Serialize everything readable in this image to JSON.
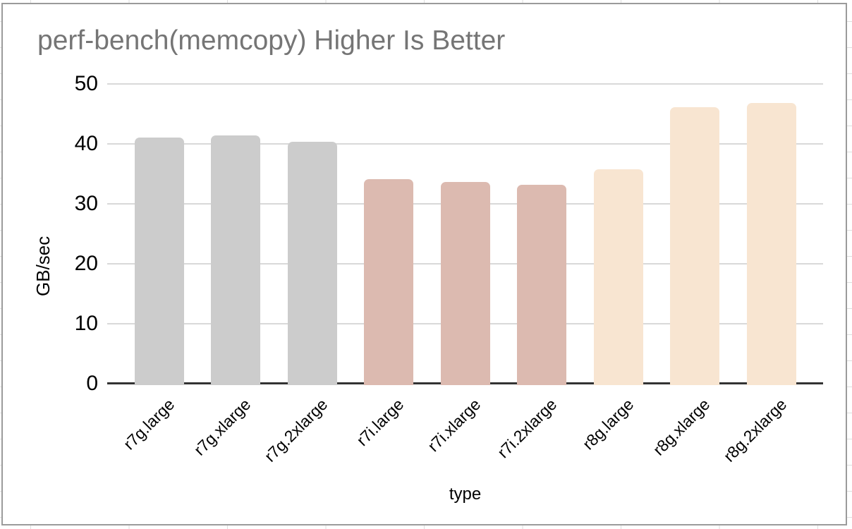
{
  "canvas": {
    "background_color": "#ffffff",
    "sheet_gridline_color": "#dedede",
    "card_border_color": "#9b9b9b"
  },
  "chart_data": {
    "type": "bar",
    "title": "perf-bench(memcopy) Higher Is Better",
    "xlabel": "type",
    "ylabel": "GB/sec",
    "categories": [
      "r7g.large",
      "r7g.xlarge",
      "r7g.2xlarge",
      "r7i.large",
      "r7i.xlarge",
      "r7i.2xlarge",
      "r8g.large",
      "r8g.xlarge",
      "r8g.2xlarge"
    ],
    "values": [
      41.1,
      41.4,
      40.3,
      34.1,
      33.7,
      33.2,
      35.8,
      46.1,
      46.8
    ],
    "bar_colors": [
      "#cccccc",
      "#cccccc",
      "#cccccc",
      "#dcbab0",
      "#dcbab0",
      "#dcbab0",
      "#f8e5d1",
      "#f8e5d1",
      "#f8e5d1"
    ],
    "group_colors": [
      {
        "name": "r7g",
        "color": "#cccccc"
      },
      {
        "name": "r7i",
        "color": "#dcbab0"
      },
      {
        "name": "r8g",
        "color": "#f8e5d1"
      }
    ],
    "ylim": [
      0,
      50
    ],
    "yticks": [
      0,
      10,
      20,
      30,
      40,
      50
    ],
    "grid": true,
    "legend": "none",
    "title_color": "#757575",
    "gridline_color": "#d9d9d9",
    "axis_line_color": "#333333",
    "tick_label_color": "#000000"
  }
}
